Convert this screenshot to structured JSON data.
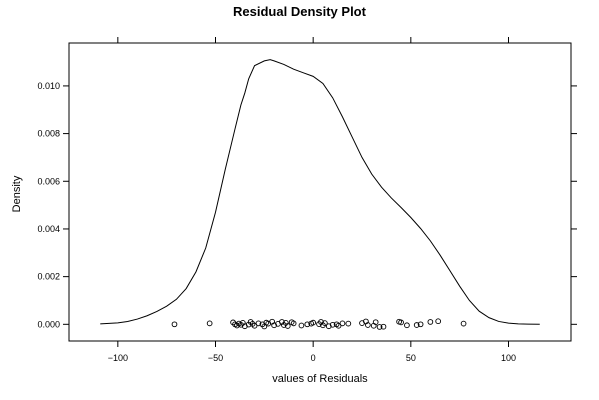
{
  "chart_data": {
    "type": "line",
    "title": "Residual Density Plot",
    "xlabel": "values of Residuals",
    "ylabel": "Density",
    "xlim": [
      -125,
      132
    ],
    "ylim": [
      -0.0007,
      0.0118
    ],
    "x_ticks": [
      -100,
      -50,
      0,
      50,
      100
    ],
    "y_ticks": [
      0.0,
      0.002,
      0.004,
      0.006,
      0.008,
      0.01
    ],
    "x_tick_labels": [
      "−100",
      "−50",
      "0",
      "50",
      "100"
    ],
    "y_tick_labels": [
      "0.000",
      "0.002",
      "0.004",
      "0.006",
      "0.008",
      "0.010"
    ],
    "grid": false,
    "series": [
      {
        "kind": "density-curve",
        "x": [
          -109,
          -100,
          -95,
          -90,
          -85,
          -80,
          -75,
          -70,
          -65,
          -60,
          -55,
          -50,
          -45,
          -40,
          -37,
          -35,
          -33,
          -30,
          -25,
          -22,
          -20,
          -15,
          -10,
          -5,
          0,
          5,
          10,
          15,
          20,
          25,
          30,
          35,
          40,
          45,
          50,
          55,
          60,
          65,
          70,
          75,
          80,
          85,
          90,
          95,
          100,
          105,
          110,
          116
        ],
        "y": [
          2e-05,
          6e-05,
          0.00012,
          0.00022,
          0.00036,
          0.00054,
          0.00076,
          0.00105,
          0.0015,
          0.0022,
          0.0032,
          0.0047,
          0.0065,
          0.0082,
          0.0092,
          0.0097,
          0.0103,
          0.01085,
          0.01105,
          0.0111,
          0.01105,
          0.0109,
          0.0107,
          0.01055,
          0.0104,
          0.0101,
          0.0095,
          0.0087,
          0.00785,
          0.007,
          0.0063,
          0.00575,
          0.0053,
          0.0049,
          0.00448,
          0.00402,
          0.0035,
          0.0029,
          0.00225,
          0.0016,
          0.001,
          0.00055,
          0.00028,
          0.00012,
          5e-05,
          2e-05,
          1e-05,
          0.0
        ]
      },
      {
        "kind": "rug-points",
        "x": [
          -71,
          -53,
          -41,
          -40,
          -39,
          -38,
          -37,
          -36,
          -35,
          -33,
          -32,
          -31,
          -30,
          -28,
          -26,
          -25,
          -24,
          -23,
          -21,
          -20,
          -18,
          -16,
          -15,
          -14,
          -13,
          -11,
          -10,
          -6,
          -3,
          -1,
          0,
          3,
          4,
          5,
          6,
          8,
          10,
          12,
          13,
          15,
          18,
          25,
          27,
          28,
          31,
          32,
          34,
          36,
          44,
          45,
          48,
          53,
          55,
          60,
          64,
          77
        ],
        "y": [
          0.0,
          4e-05,
          8e-05,
          0.0,
          -5e-05,
          3e-05,
          -2e-05,
          6e-05,
          -8e-05,
          -1e-05,
          0.0001,
          2e-05,
          -6e-05,
          4e-05,
          0.0,
          -9e-05,
          7e-05,
          3e-05,
          0.00011,
          -4e-05,
          2e-05,
          0.0001,
          -3e-05,
          6e-05,
          -7e-05,
          9e-05,
          4e-05,
          -5e-05,
          0.0,
          3e-05,
          7e-05,
          1e-05,
          0.0001,
          -4e-05,
          5e-05,
          -8e-05,
          -2e-05,
          0.0,
          -6e-05,
          4e-05,
          3e-05,
          5e-05,
          0.00012,
          -3e-05,
          -6e-05,
          9e-05,
          -0.00011,
          -0.0001,
          0.00011,
          8e-05,
          -4e-05,
          -3e-05,
          0.0,
          0.0001,
          0.00013,
          3e-05
        ]
      }
    ]
  }
}
